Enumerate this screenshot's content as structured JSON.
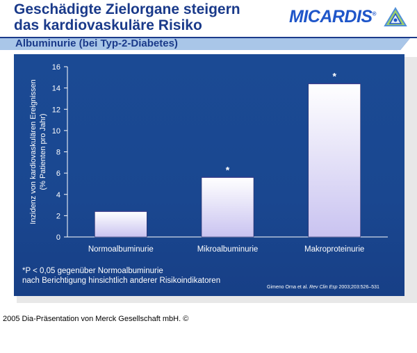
{
  "title": {
    "line1": "Geschädigte Zielorgane steigern",
    "line2": "das kardiovaskuläre Risiko"
  },
  "logo": {
    "text": "MICARDIS",
    "suffix": "®"
  },
  "subtitle": "Albuminurie (bei Typ-2-Diabetes)",
  "colors": {
    "title": "#1a3a8a",
    "panel": "#1b4a94",
    "accent_bar": "#a9c6e8",
    "bar_top": "#ffffff",
    "bar_bottom": "#c9c3f0"
  },
  "chart_data": {
    "type": "bar",
    "categories": [
      "Normoalbuminurie",
      "Mikroalbuminurie",
      "Makroproteinurie"
    ],
    "values": [
      2.4,
      5.6,
      14.4
    ],
    "significance": [
      "",
      "*",
      "*"
    ],
    "ylabel_line1": "Inzidenz von kardiovaskulären Ereignissen",
    "ylabel_line2": "(% Patienten pro Jahr)",
    "xlabel": "",
    "ylim": [
      0,
      16
    ],
    "yticks": [
      "0",
      "2",
      "4",
      "6",
      "8",
      "10",
      "12",
      "14",
      "16"
    ],
    "ytick_values": [
      0,
      2,
      4,
      6,
      8,
      10,
      12,
      14,
      16
    ],
    "grid": false,
    "legend": "none"
  },
  "footnote": {
    "line1": "*P < 0,05 gegenüber Normoalbuminurie",
    "line2": "nach Berichtigung hinsichtlich anderer Risikoindikatoren"
  },
  "citation": {
    "authors": "Gimeno Orna et al.",
    "journal": "Rev Clin Esp",
    "details": "2003;203:526–531"
  },
  "copyright": "2005 Dia-Präsentation von Merck Gesellschaft mbH. ©"
}
